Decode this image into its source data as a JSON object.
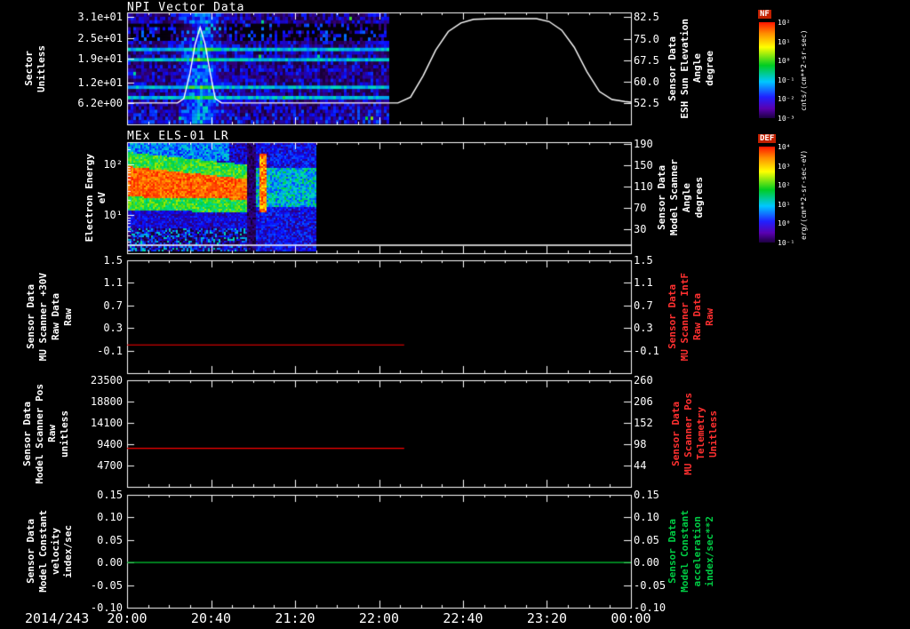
{
  "figure": {
    "date_label": "2014/243",
    "x_tick_labels": [
      "20:00",
      "20:40",
      "21:20",
      "22:00",
      "22:40",
      "23:20",
      "00:00"
    ],
    "x_range_hours": [
      20,
      24
    ],
    "background": "#000000"
  },
  "chart_data": [
    {
      "type": "heatmap",
      "title": "NPI Vector Data",
      "ylabel_lines": [
        "Sector",
        "Unitless"
      ],
      "y_ticks": {
        "labels": [
          "3.1e+01",
          "2.5e+01",
          "1.9e+01",
          "1.2e+01",
          "6.2e+00"
        ],
        "values": [
          31,
          25,
          19,
          12,
          6.2
        ]
      },
      "ylim": [
        0,
        32.4
      ],
      "right_axis": {
        "label_lines": [
          "Sensor Data",
          "ESH Sun Elevation",
          "Angle",
          "degree"
        ],
        "color": "#ffffff",
        "tick_labels": [
          "82.5",
          "75.0",
          "67.5",
          "60.0",
          "52.5"
        ],
        "tick_values": [
          82.5,
          75.0,
          67.5,
          60.0,
          52.5
        ],
        "lim": [
          45,
          84.2
        ]
      },
      "colorbar": {
        "name": "NF",
        "units": "cnts/(cm**2-sr-sec)",
        "tick_labels": [
          "10²",
          "10¹",
          "10⁰",
          "10⁻¹",
          "10⁻²",
          "10⁻³"
        ]
      },
      "heatmap": {
        "rows": 32,
        "t_start": 20.0,
        "t_end": 22.07,
        "bright_sector_rows": [
          10,
          13,
          21,
          24
        ],
        "dark_sector_rows": [
          3,
          4,
          5,
          6,
          7
        ],
        "enhancement_center_hour": 20.58,
        "enhancement_width_hours": 0.13,
        "note": "mostly low counts (purple/blue) with bright cyan sector rows and an enhancement near 20:35"
      },
      "overlay_series": {
        "name": "ESH Sun Elevation Angle",
        "color": "#ffffff",
        "axis": "right",
        "points": [
          [
            20.0,
            52.5
          ],
          [
            20.4,
            52.5
          ],
          [
            20.45,
            54
          ],
          [
            20.5,
            63
          ],
          [
            20.54,
            73
          ],
          [
            20.58,
            79
          ],
          [
            20.62,
            73
          ],
          [
            20.66,
            63
          ],
          [
            20.7,
            54
          ],
          [
            20.75,
            52.5
          ],
          [
            21.5,
            52.5
          ],
          [
            22.15,
            52.5
          ],
          [
            22.25,
            54.5
          ],
          [
            22.35,
            62
          ],
          [
            22.45,
            71
          ],
          [
            22.55,
            77.5
          ],
          [
            22.65,
            80.5
          ],
          [
            22.75,
            81.8
          ],
          [
            22.9,
            82
          ],
          [
            23.25,
            82
          ],
          [
            23.35,
            81
          ],
          [
            23.45,
            78
          ],
          [
            23.55,
            72
          ],
          [
            23.65,
            63.5
          ],
          [
            23.75,
            56.5
          ],
          [
            23.85,
            53.7
          ],
          [
            23.95,
            53
          ],
          [
            24.0,
            52.8
          ]
        ]
      }
    },
    {
      "type": "heatmap",
      "title": "MEx ELS-01 LR",
      "ylabel_lines": [
        "Electron Energy",
        "eV"
      ],
      "y_scale": "log",
      "y_ticks": {
        "labels": [
          "10²",
          "10¹"
        ],
        "values": [
          100,
          10
        ]
      },
      "ylim": [
        1.8,
        275
      ],
      "right_axis": {
        "label_lines": [
          "Sensor Data",
          "Model Scanner",
          "Angle",
          "degrees"
        ],
        "color": "#ffffff",
        "tick_labels": [
          "190",
          "150",
          "110",
          "70",
          "30"
        ],
        "tick_values": [
          190,
          150,
          110,
          70,
          30
        ],
        "lim": [
          -15,
          193.5
        ]
      },
      "colorbar": {
        "name": "DEF",
        "units": "erg/(cm**2-sr-sec-eV)",
        "tick_labels": [
          "10⁴",
          "10³",
          "10²",
          "10¹",
          "10⁰",
          "10⁻¹"
        ]
      },
      "heatmap": {
        "t_start": 20.0,
        "t_end": 21.5,
        "wedge_end": 20.94,
        "gap": [
          20.95,
          21.02
        ],
        "burst": [
          21.04,
          21.1
        ],
        "burst_energy": [
          12,
          170
        ],
        "wedge_e_high_start": 95,
        "wedge_e_low_start": 24,
        "note": "intense red band 25-95 eV from 20:00 to ~21:00 drifting down, dark gap, narrow red burst ~21:05, green/blue noise until 21:30"
      },
      "overlay_series": {
        "name": "Model Scanner Angle",
        "color": "#ffffff",
        "axis": "right",
        "points": [
          [
            20.0,
            0
          ],
          [
            24.0,
            0
          ]
        ]
      }
    },
    {
      "type": "line",
      "title": "",
      "ylabel_lines": [
        "Sensor Data",
        "MU Scanner +30V",
        "Raw Data",
        "Raw"
      ],
      "y_ticks": {
        "labels": [
          "1.5",
          "1.1",
          "0.7",
          "0.3",
          "-0.1"
        ],
        "values": [
          1.5,
          1.1,
          0.7,
          0.3,
          -0.1
        ]
      },
      "ylim": [
        -0.5,
        1.5
      ],
      "right_axis": {
        "label_lines": [
          "Sensor Data",
          "MU Scanner IntF",
          "Raw Data",
          "Raw"
        ],
        "color": "#ff3030",
        "tick_labels": [
          "1.5",
          "1.1",
          "0.7",
          "0.3",
          "-0.1"
        ],
        "tick_values": [
          1.5,
          1.1,
          0.7,
          0.3,
          -0.1
        ],
        "lim": [
          -0.5,
          1.5
        ]
      },
      "series": [
        {
          "name": "MU Scanner +30V Raw",
          "color": "#ff0000",
          "points": [
            [
              20.0,
              0.0
            ],
            [
              22.2,
              0.0
            ]
          ]
        }
      ]
    },
    {
      "type": "line",
      "title": "",
      "ylabel_lines": [
        "Sensor Data",
        "Model Scanner Pos",
        "Raw",
        "unitless"
      ],
      "y_ticks": {
        "labels": [
          "23500",
          "18800",
          "14100",
          "9400",
          "4700"
        ],
        "values": [
          23500,
          18800,
          14100,
          9400,
          4700
        ]
      },
      "ylim": [
        0,
        23500
      ],
      "right_axis": {
        "label_lines": [
          "Sensor Data",
          "MU Scanner Pos",
          "Telemetry",
          "Unitless"
        ],
        "color": "#ff3030",
        "tick_labels": [
          "260",
          "206",
          "152",
          "98",
          "44"
        ],
        "tick_values": [
          260,
          206,
          152,
          98,
          44
        ],
        "lim": [
          -10,
          260
        ]
      },
      "series": [
        {
          "name": "Model Scanner Pos Raw",
          "color": "#ff0000",
          "points": [
            [
              20.0,
              8500
            ],
            [
              22.2,
              8500
            ]
          ]
        }
      ]
    },
    {
      "type": "line",
      "title": "",
      "ylabel_lines": [
        "Sensor Data",
        "Model Constant",
        "velocity",
        "index/sec"
      ],
      "y_ticks": {
        "labels": [
          "0.15",
          "0.10",
          "0.05",
          "0.00",
          "-0.05",
          "-0.10"
        ],
        "values": [
          0.15,
          0.1,
          0.05,
          0.0,
          -0.05,
          -0.1
        ]
      },
      "ylim": [
        -0.1,
        0.15
      ],
      "right_axis": {
        "label_lines": [
          "Sensor Data",
          "Model Constant",
          "acceleration",
          "index/sec**2"
        ],
        "color": "#00cc44",
        "tick_labels": [
          "0.15",
          "0.10",
          "0.05",
          "0.00",
          "-0.05",
          "-0.10"
        ],
        "tick_values": [
          0.15,
          0.1,
          0.05,
          0.0,
          -0.05,
          -0.1
        ],
        "lim": [
          -0.1,
          0.15
        ]
      },
      "series": [
        {
          "name": "Model Constant velocity",
          "color": "#00cc33",
          "points": [
            [
              20.0,
              0.0
            ],
            [
              24.0,
              0.0
            ]
          ]
        }
      ]
    }
  ]
}
